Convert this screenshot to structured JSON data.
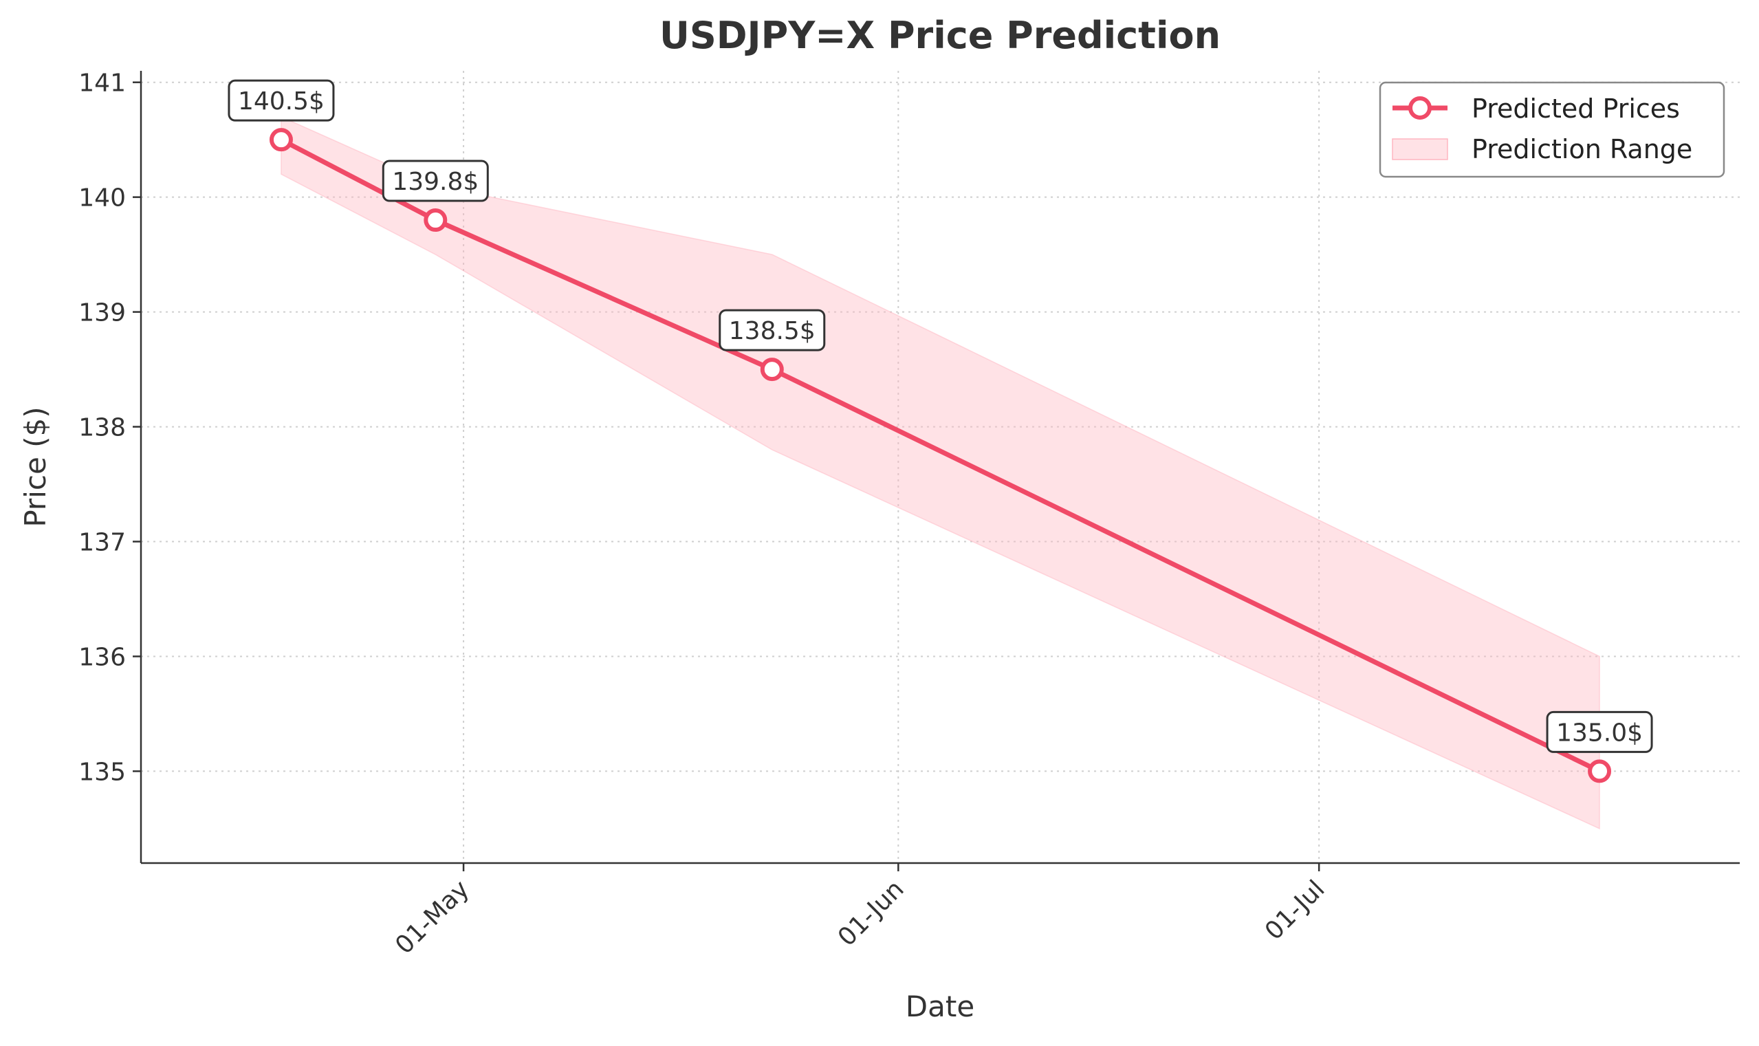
{
  "chart_data": {
    "type": "line",
    "title": "USDJPY=X Price Prediction",
    "xlabel": "Date",
    "ylabel": "Price ($)",
    "x_ticks": [
      "01-May",
      "01-Jun",
      "01-Jul"
    ],
    "y_ticks": [
      135,
      136,
      137,
      138,
      139,
      140,
      141
    ],
    "ylim": [
      134.2,
      141.1
    ],
    "grid": true,
    "legend_position": "top-right",
    "series": [
      {
        "name": "Predicted Prices",
        "color": "#f04a67",
        "points": [
          {
            "x": "2023-04-18",
            "y": 140.5,
            "label": "140.5$"
          },
          {
            "x": "2023-04-29",
            "y": 139.8,
            "label": "139.8$"
          },
          {
            "x": "2023-05-23",
            "y": 138.5,
            "label": "138.5$"
          },
          {
            "x": "2023-07-21",
            "y": 135.0,
            "label": "135.0$"
          }
        ]
      }
    ],
    "range": {
      "name": "Prediction Range",
      "color": "#ffb6c1",
      "lower": [
        140.2,
        139.5,
        137.8,
        134.5
      ],
      "upper": [
        140.7,
        140.1,
        139.5,
        136.0
      ]
    }
  }
}
